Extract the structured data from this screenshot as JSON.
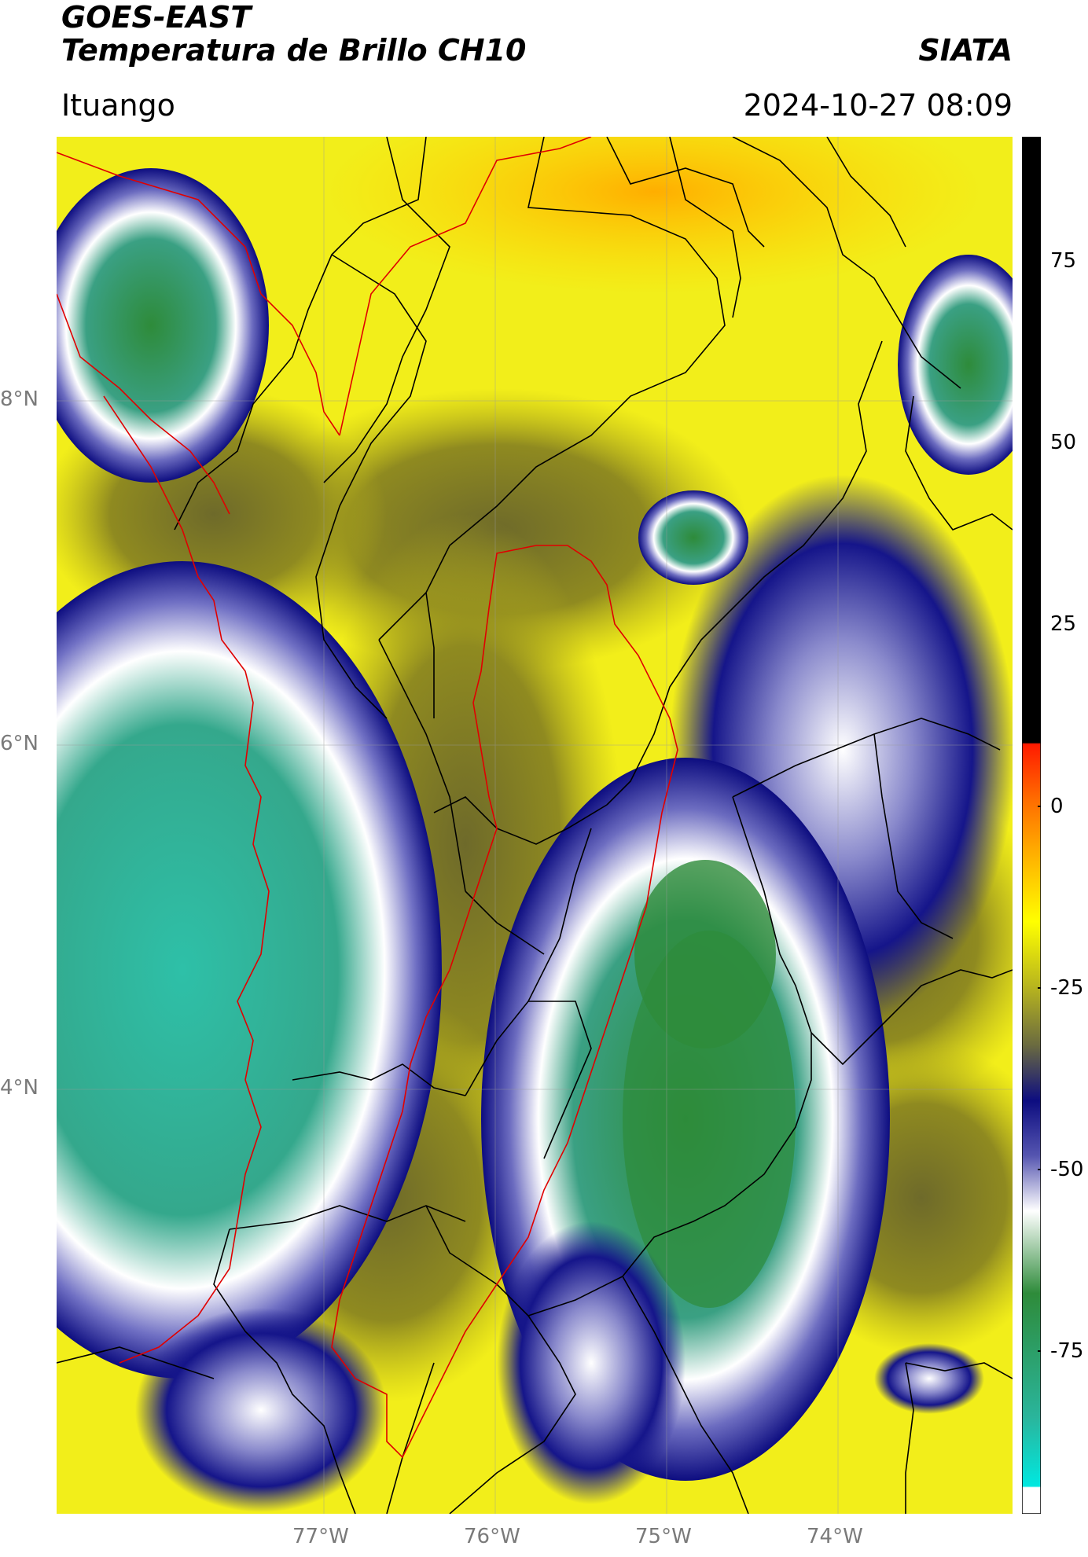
{
  "header": {
    "satellite": "GOES-EAST",
    "product": "Temperatura de Brillo CH10",
    "brand": "SIATA",
    "location": "Ituango",
    "timestamp": "2024-10-27 08:09"
  },
  "axes": {
    "latitude_labels": [
      "8°N",
      "6°N",
      "4°N"
    ],
    "longitude_labels": [
      "77°W",
      "76°W",
      "75°W",
      "74°W"
    ]
  },
  "colorbar": {
    "ticks": [
      "75",
      "50",
      "25",
      "0",
      "-25",
      "-50",
      "-75"
    ],
    "colors": {
      "black": "#000000",
      "red": "#ff1a00",
      "orange": "#ffa500",
      "yellow": "#ffff00",
      "olive": "#7a7a1e",
      "navy": "#0d0d80",
      "white": "#ffffff",
      "green": "#2e8b3a",
      "cyan": "#00e0d8"
    }
  },
  "map": {
    "colors": {
      "background_yellow": "#f2ee1a",
      "border": "#000000",
      "region_outline": "#e00000"
    }
  }
}
